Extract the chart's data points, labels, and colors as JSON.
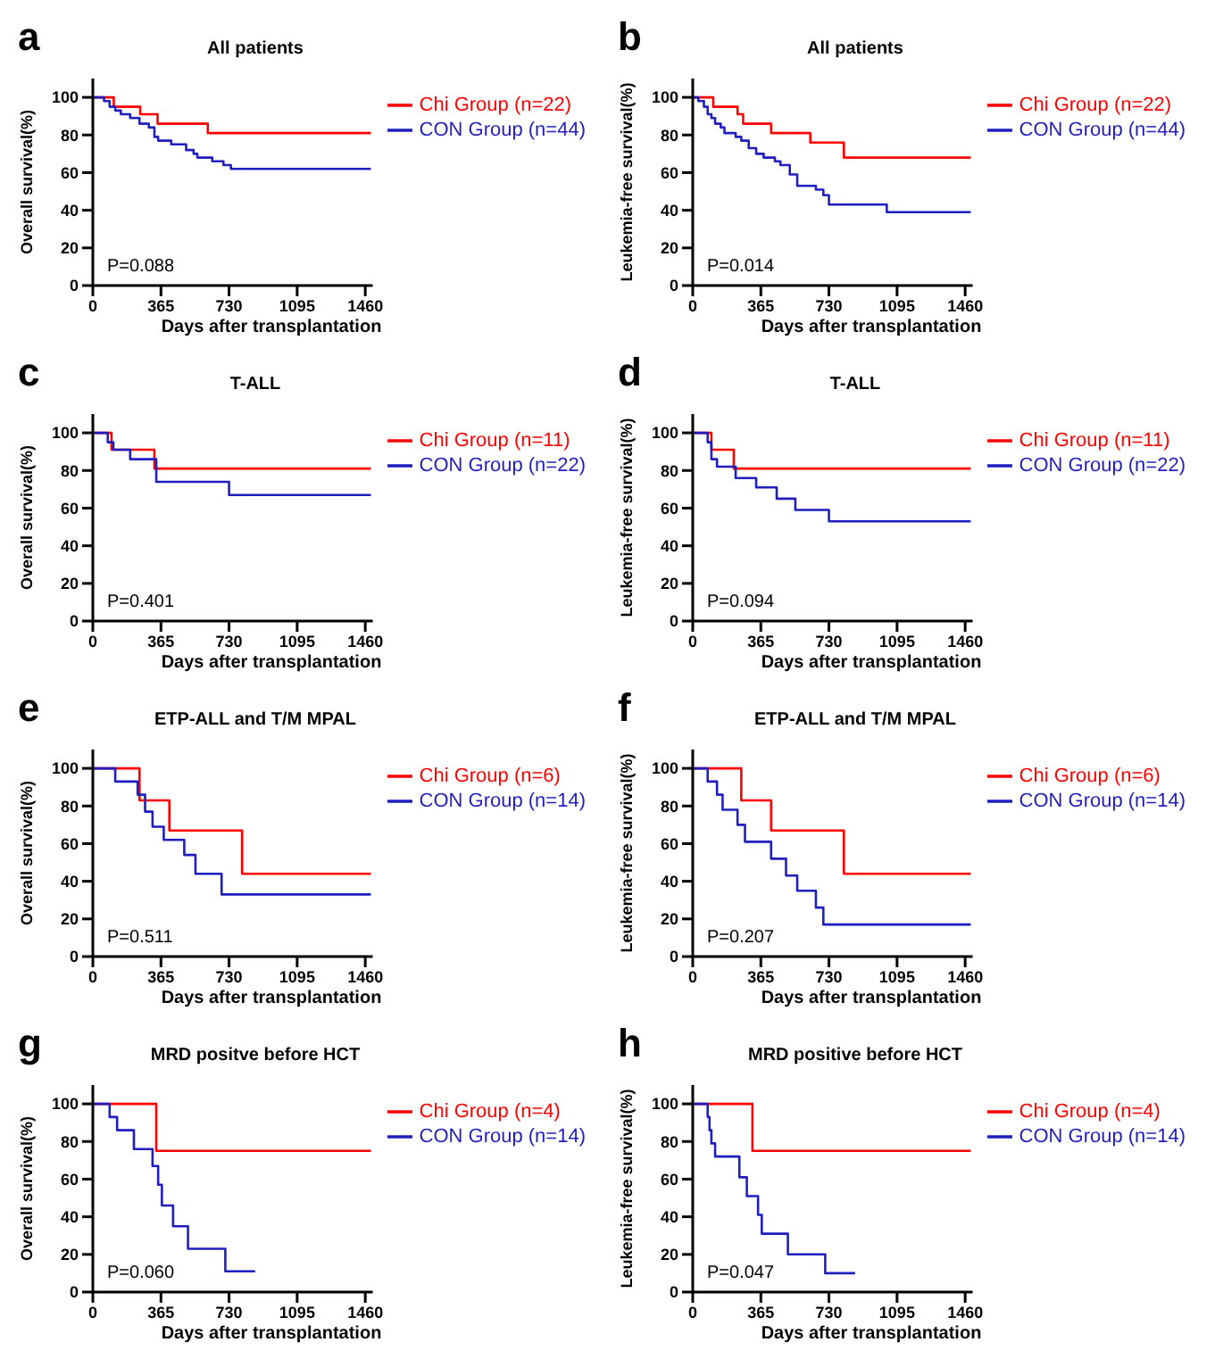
{
  "chart_data": [
    {
      "type": "step",
      "title": "All patients",
      "xlabel": "Days after transplantation",
      "ylabel": "Overall survival(%)",
      "xlim": [
        0,
        1500
      ],
      "xticks": [
        0,
        365,
        730,
        1095,
        1460
      ],
      "ylim": [
        0,
        110
      ],
      "yticks": [
        0,
        20,
        40,
        60,
        80,
        100
      ],
      "legend": "right",
      "annotations": [
        "a",
        "P=0.088"
      ],
      "series": [
        {
          "name": "Chi Group (n=22)",
          "color": "#ff0000",
          "x": [
            0,
            112,
            254,
            347,
            616,
            1490
          ],
          "values": [
            100,
            95,
            91,
            86,
            81,
            81
          ]
        },
        {
          "name": "CON Group (n=44)",
          "color": "#1f1fbf",
          "x": [
            0,
            60,
            90,
            120,
            150,
            200,
            250,
            300,
            330,
            350,
            420,
            500,
            540,
            560,
            640,
            700,
            740,
            1490
          ],
          "values": [
            100,
            98,
            95,
            93,
            91,
            89,
            86,
            84,
            79,
            77,
            75,
            72,
            70,
            68,
            66,
            64,
            62,
            62
          ]
        }
      ]
    },
    {
      "type": "step",
      "title": "All patients",
      "xlabel": "Days after transplantation",
      "ylabel": "Leukemia-free survival(%)",
      "xlim": [
        0,
        1500
      ],
      "xticks": [
        0,
        365,
        730,
        1095,
        1460
      ],
      "ylim": [
        0,
        110
      ],
      "yticks": [
        0,
        20,
        40,
        60,
        80,
        100
      ],
      "legend": "right",
      "annotations": [
        "b",
        "P=0.014"
      ],
      "series": [
        {
          "name": "Chi Group (n=22)",
          "color": "#ff0000",
          "x": [
            0,
            110,
            240,
            270,
            420,
            630,
            810,
            1490
          ],
          "values": [
            100,
            95,
            91,
            86,
            81,
            76,
            68,
            68
          ]
        },
        {
          "name": "CON Group (n=44)",
          "color": "#1f1fbf",
          "x": [
            0,
            30,
            60,
            80,
            100,
            120,
            150,
            170,
            230,
            260,
            300,
            340,
            380,
            440,
            470,
            520,
            560,
            660,
            700,
            730,
            1040,
            1490
          ],
          "values": [
            100,
            98,
            95,
            91,
            89,
            86,
            84,
            81,
            79,
            77,
            73,
            70,
            68,
            66,
            64,
            59,
            53,
            51,
            48,
            43,
            39,
            39
          ]
        }
      ]
    },
    {
      "type": "step",
      "title": "T-ALL",
      "xlabel": "Days after transplantation",
      "ylabel": "Overall survival(%)",
      "xlim": [
        0,
        1500
      ],
      "xticks": [
        0,
        365,
        730,
        1095,
        1460
      ],
      "ylim": [
        0,
        110
      ],
      "yticks": [
        0,
        20,
        40,
        60,
        80,
        100
      ],
      "legend": "right",
      "annotations": [
        "c",
        "P=0.401"
      ],
      "series": [
        {
          "name": "Chi Group (n=11)",
          "color": "#ff0000",
          "x": [
            0,
            100,
            330,
            1490
          ],
          "values": [
            100,
            91,
            81,
            81
          ]
        },
        {
          "name": "CON Group (n=22)",
          "color": "#1f1fbf",
          "x": [
            0,
            80,
            110,
            200,
            340,
            730,
            1490
          ],
          "values": [
            100,
            95,
            91,
            86,
            74,
            67,
            67
          ]
        }
      ]
    },
    {
      "type": "step",
      "title": "T-ALL",
      "xlabel": "Days after transplantation",
      "ylabel": "Leukemia-free survival(%)",
      "xlim": [
        0,
        1500
      ],
      "xticks": [
        0,
        365,
        730,
        1095,
        1460
      ],
      "ylim": [
        0,
        110
      ],
      "yticks": [
        0,
        20,
        40,
        60,
        80,
        100
      ],
      "legend": "right",
      "annotations": [
        "d",
        "P=0.094"
      ],
      "series": [
        {
          "name": "Chi Group (n=11)",
          "color": "#ff0000",
          "x": [
            0,
            100,
            220,
            1490
          ],
          "values": [
            100,
            91,
            81,
            81
          ]
        },
        {
          "name": "CON Group (n=22)",
          "color": "#1f1fbf",
          "x": [
            0,
            80,
            100,
            130,
            230,
            340,
            450,
            550,
            730,
            1490
          ],
          "values": [
            100,
            95,
            86,
            82,
            76,
            71,
            65,
            59,
            53,
            53
          ]
        }
      ]
    },
    {
      "type": "step",
      "title": "ETP-ALL and T/M MPAL",
      "xlabel": "Days after transplantation",
      "ylabel": "Overall survival(%)",
      "xlim": [
        0,
        1500
      ],
      "xticks": [
        0,
        365,
        730,
        1095,
        1460
      ],
      "ylim": [
        0,
        110
      ],
      "yticks": [
        0,
        20,
        40,
        60,
        80,
        100
      ],
      "legend": "right",
      "annotations": [
        "e",
        "P=0.511"
      ],
      "series": [
        {
          "name": "Chi Group (n=6)",
          "color": "#ff0000",
          "x": [
            0,
            250,
            410,
            800,
            1490
          ],
          "values": [
            100,
            83,
            67,
            44,
            44
          ]
        },
        {
          "name": "CON Group (n=14)",
          "color": "#1f1fbf",
          "x": [
            0,
            120,
            240,
            280,
            320,
            380,
            490,
            550,
            690,
            1490
          ],
          "values": [
            100,
            93,
            86,
            77,
            69,
            62,
            54,
            44,
            33,
            33
          ]
        }
      ]
    },
    {
      "type": "step",
      "title": "ETP-ALL and T/M MPAL",
      "xlabel": "Days after transplantation",
      "ylabel": "Leukemia-free survival(%)",
      "xlim": [
        0,
        1500
      ],
      "xticks": [
        0,
        365,
        730,
        1095,
        1460
      ],
      "ylim": [
        0,
        110
      ],
      "yticks": [
        0,
        20,
        40,
        60,
        80,
        100
      ],
      "legend": "right",
      "annotations": [
        "f",
        "P=0.207"
      ],
      "series": [
        {
          "name": "Chi Group (n=6)",
          "color": "#ff0000",
          "x": [
            0,
            260,
            420,
            810,
            1490
          ],
          "values": [
            100,
            83,
            67,
            44,
            44
          ]
        },
        {
          "name": "CON Group (n=14)",
          "color": "#1f1fbf",
          "x": [
            0,
            80,
            130,
            160,
            240,
            280,
            420,
            500,
            560,
            660,
            700,
            1490
          ],
          "values": [
            100,
            93,
            86,
            78,
            70,
            61,
            52,
            43,
            35,
            26,
            17,
            17
          ]
        }
      ]
    },
    {
      "type": "step",
      "title": "MRD positve before HCT",
      "xlabel": "Days after transplantation",
      "ylabel": "Overall survival(%)",
      "xlim": [
        0,
        1500
      ],
      "xticks": [
        0,
        365,
        730,
        1095,
        1460
      ],
      "ylim": [
        0,
        110
      ],
      "yticks": [
        0,
        20,
        40,
        60,
        80,
        100
      ],
      "legend": "right",
      "annotations": [
        "g",
        "P=0.060"
      ],
      "series": [
        {
          "name": "Chi Group (n=4)",
          "color": "#ff0000",
          "x": [
            0,
            340,
            1490
          ],
          "values": [
            100,
            75,
            75
          ]
        },
        {
          "name": "CON Group (n=14)",
          "color": "#1f1fbf",
          "x": [
            0,
            90,
            130,
            220,
            320,
            350,
            370,
            430,
            510,
            710,
            870
          ],
          "values": [
            100,
            93,
            86,
            76,
            67,
            57,
            46,
            35,
            23,
            11,
            11
          ]
        }
      ]
    },
    {
      "type": "step",
      "title": "MRD positive before HCT",
      "xlabel": "Days after transplantation",
      "ylabel": "Leukemia-free survival(%)",
      "xlim": [
        0,
        1500
      ],
      "xticks": [
        0,
        365,
        730,
        1095,
        1460
      ],
      "ylim": [
        0,
        110
      ],
      "yticks": [
        0,
        20,
        40,
        60,
        80,
        100
      ],
      "legend": "right",
      "annotations": [
        "h",
        "P=0.047"
      ],
      "series": [
        {
          "name": "Chi Group (n=4)",
          "color": "#ff0000",
          "x": [
            0,
            320,
            1490
          ],
          "values": [
            100,
            75,
            75
          ]
        },
        {
          "name": "CON Group (n=14)",
          "color": "#1f1fbf",
          "x": [
            0,
            80,
            90,
            100,
            120,
            250,
            290,
            350,
            370,
            510,
            710,
            870
          ],
          "values": [
            100,
            93,
            86,
            79,
            72,
            61,
            51,
            41,
            31,
            20,
            10,
            10
          ]
        }
      ]
    }
  ]
}
